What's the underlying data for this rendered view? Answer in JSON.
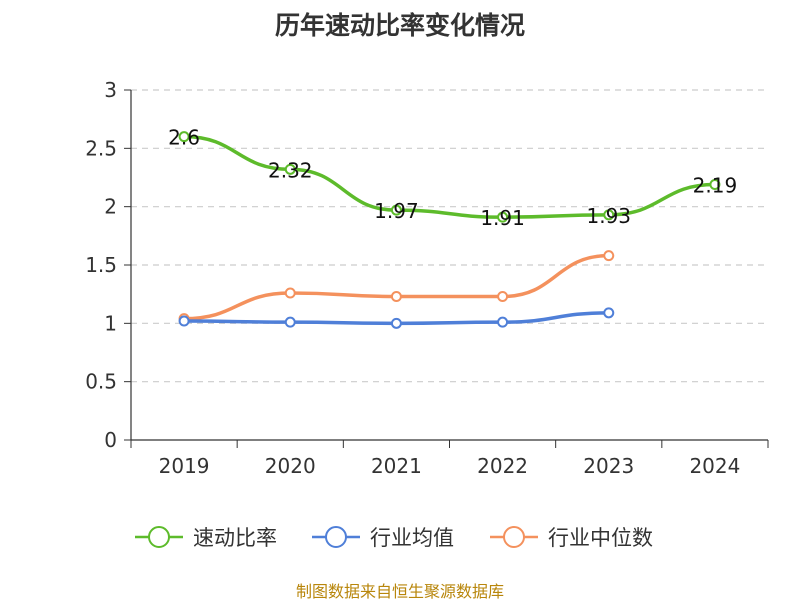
{
  "chart_data": {
    "type": "line",
    "title": "历年速动比率变化情况",
    "categories": [
      "2019",
      "2020",
      "2021",
      "2022",
      "2023",
      "2024"
    ],
    "ylim": [
      0,
      3
    ],
    "yticks": [
      "0",
      "0.5",
      "1",
      "1.5",
      "2",
      "2.5",
      "3"
    ],
    "grid": true,
    "legend_position": "bottom",
    "series": [
      {
        "name": "速动比率",
        "color": "#5dbb2b",
        "values": [
          2.6,
          2.32,
          1.97,
          1.91,
          1.93,
          2.19
        ],
        "labels": [
          "2.6",
          "2.32",
          "1.97",
          "1.91",
          "1.93",
          "2.19"
        ]
      },
      {
        "name": "行业均值",
        "color": "#4f7fd8",
        "values": [
          1.02,
          1.01,
          1.0,
          1.01,
          1.09,
          null
        ]
      },
      {
        "name": "行业中位数",
        "color": "#f4915d",
        "values": [
          1.04,
          1.26,
          1.23,
          1.23,
          1.58,
          null
        ]
      }
    ]
  },
  "footer": "制图数据来自恒生聚源数据库"
}
